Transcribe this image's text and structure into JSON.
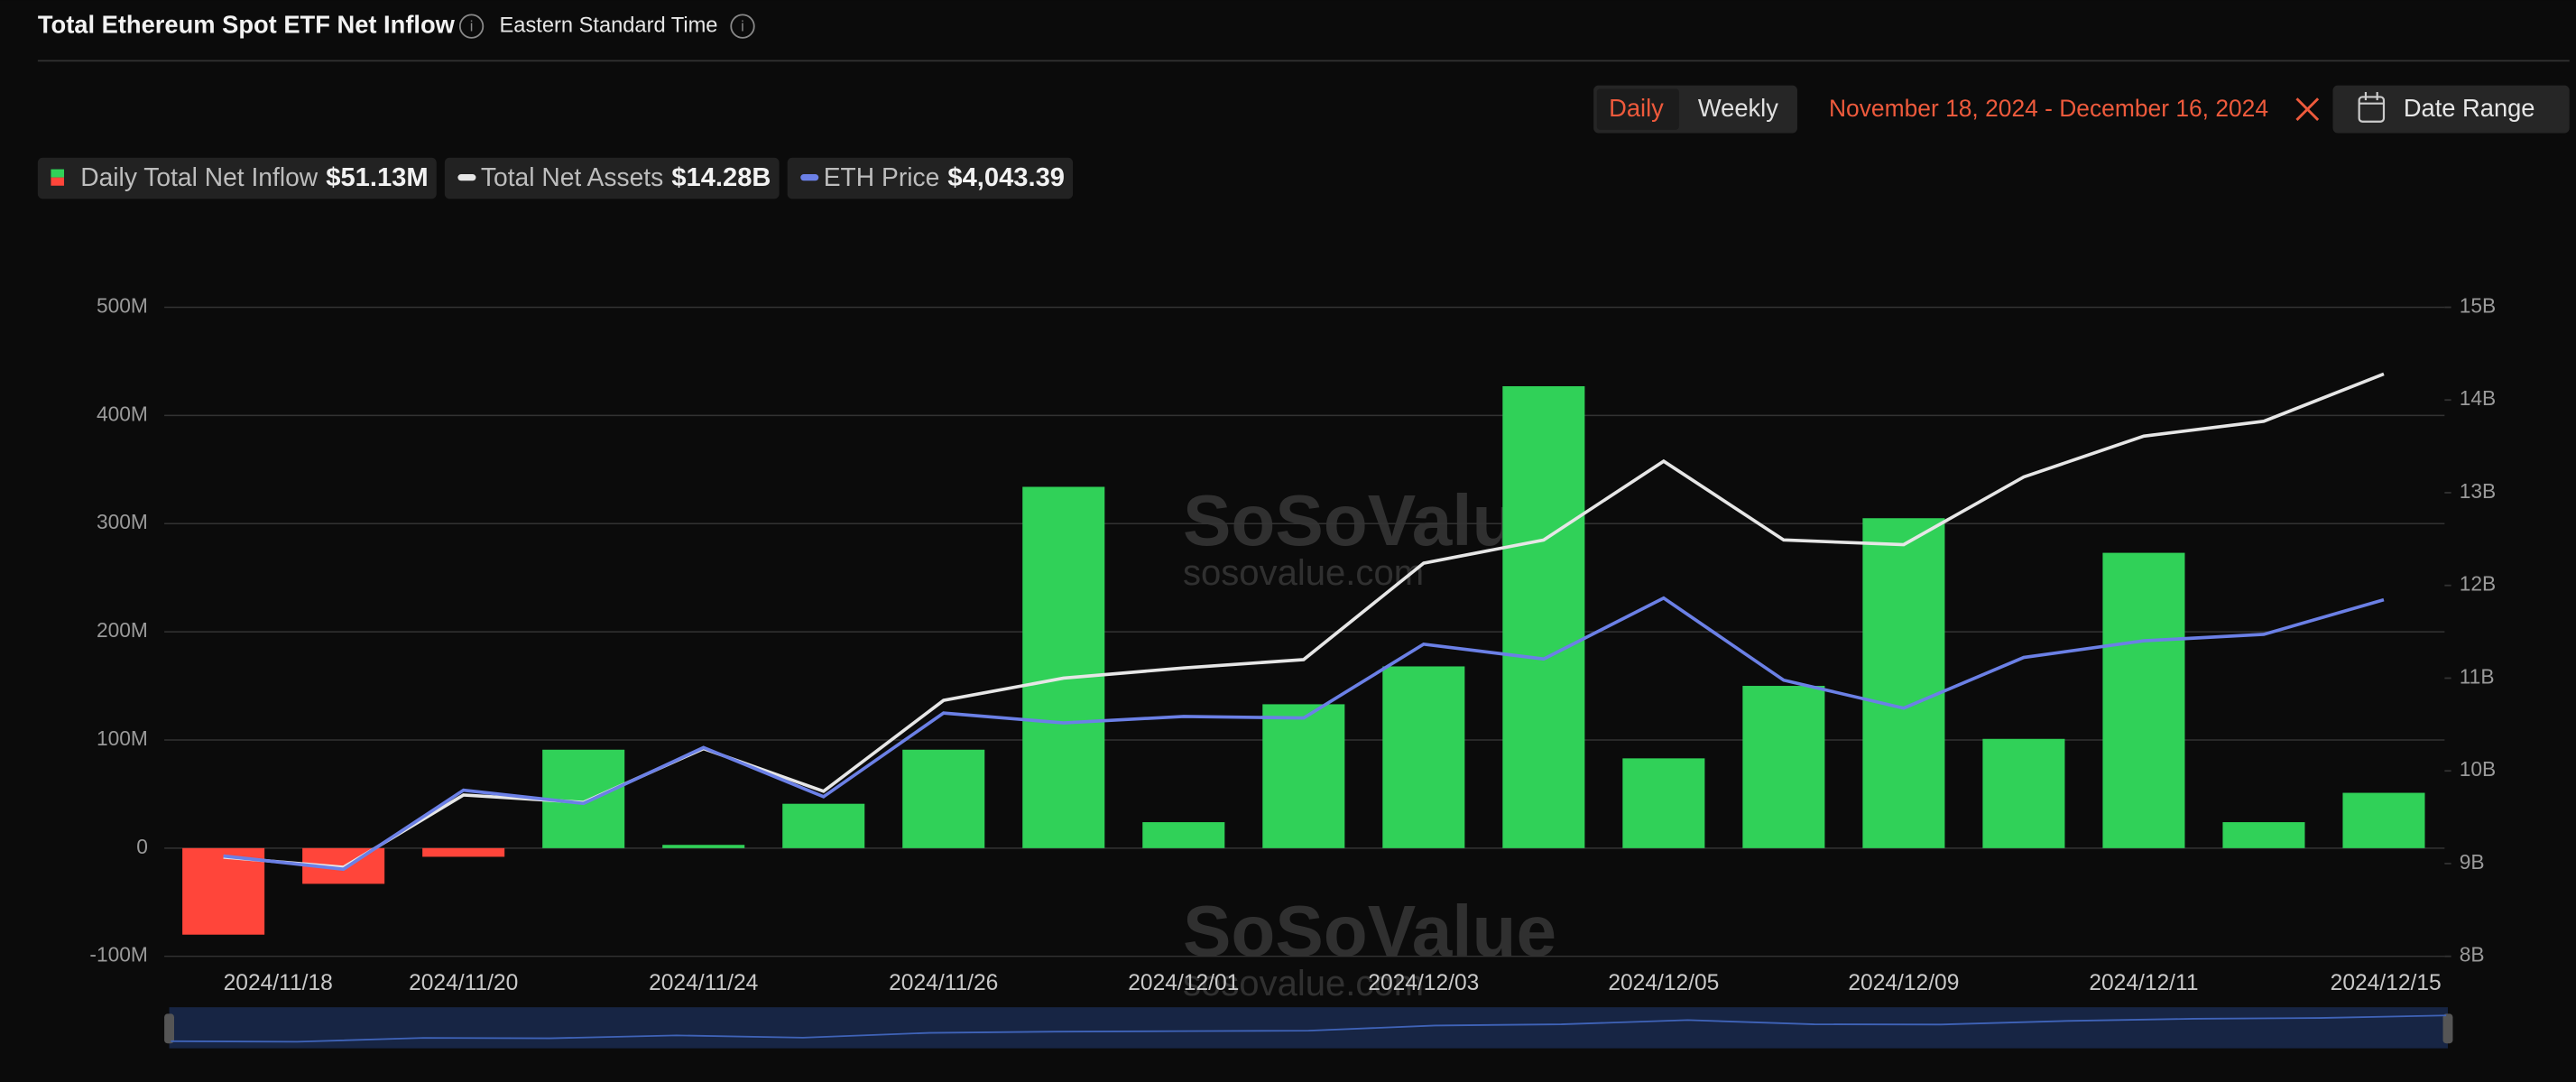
{
  "header": {
    "title": "Total Ethereum Spot ETF Net Inflow",
    "timezone": "Eastern Standard Time"
  },
  "controls": {
    "daily": "Daily",
    "weekly": "Weekly",
    "date_range_text": "November 18, 2024 - December 16, 2024",
    "date_range_button": "Date Range"
  },
  "watermark": {
    "brand": "SoSoValue",
    "site": "sosovalue.com"
  },
  "chart_data": {
    "type": "bar",
    "categories": [
      "2024/11/18",
      null,
      "2024/11/20",
      null,
      "2024/11/24",
      null,
      "2024/11/26",
      null,
      "2024/12/01",
      null,
      "2024/12/03",
      null,
      "2024/12/05",
      null,
      "2024/12/09",
      null,
      "2024/12/11",
      null,
      "2024/12/15"
    ],
    "series": [
      {
        "name": "Daily Total Net Inflow",
        "current": "$51.13M",
        "type": "bar",
        "color": "#30d158",
        "negative_color": "#ff453a",
        "values": [
          -80,
          -33,
          -8,
          91,
          3,
          41,
          91,
          334,
          24,
          133,
          168,
          427,
          83,
          150,
          305,
          101,
          273,
          24,
          51.13
        ]
      },
      {
        "name": "Total Net Assets",
        "current": "$14.28B",
        "type": "line",
        "axis": "y2",
        "color": "#e6e6e6",
        "values": [
          9.07,
          8.96,
          9.74,
          9.66,
          10.24,
          9.78,
          10.76,
          11.0,
          11.11,
          11.2,
          12.24,
          12.49,
          13.34,
          12.49,
          12.44,
          13.17,
          13.61,
          13.77,
          14.28
        ]
      },
      {
        "name": "ETH Price",
        "current": "$4,043.39",
        "type": "line",
        "axis": "hidden",
        "color": "#6b80e6",
        "values": [
          3210,
          3167,
          3424,
          3381,
          3563,
          3403,
          3675,
          3643,
          3664,
          3659,
          3899,
          3851,
          4049,
          3782,
          3691,
          3856,
          3910,
          3931,
          4043.39
        ]
      }
    ],
    "ylim": [
      -100,
      500
    ],
    "yticks": [
      {
        "value": 500,
        "label": "500M"
      },
      {
        "value": 400,
        "label": "400M"
      },
      {
        "value": 300,
        "label": "300M"
      },
      {
        "value": 200,
        "label": "200M"
      },
      {
        "value": 100,
        "label": "100M"
      },
      0,
      {
        "value": -100,
        "label": "-100M"
      }
    ],
    "y2lim": [
      8,
      15
    ],
    "y2ticks": [
      {
        "value": 15,
        "label": "15B"
      },
      {
        "value": 14,
        "label": "14B"
      },
      {
        "value": 13,
        "label": "13B"
      },
      {
        "value": 12,
        "label": "12B"
      },
      {
        "value": 11,
        "label": "11B"
      },
      {
        "value": 10,
        "label": "10B"
      },
      {
        "value": 9,
        "label": "9B"
      },
      {
        "value": 8,
        "label": "8B"
      }
    ],
    "grid": true
  }
}
